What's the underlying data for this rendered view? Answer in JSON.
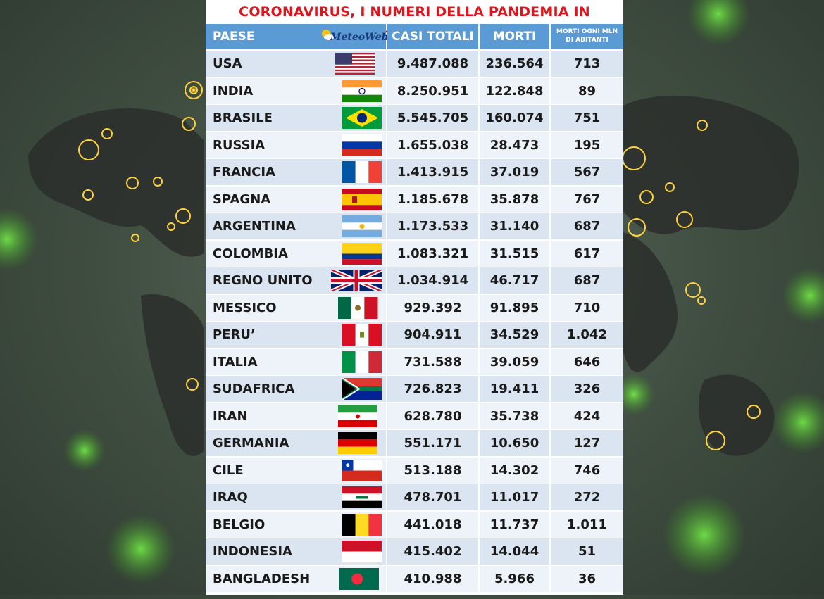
{
  "title": "CORONAVIRUS, I NUMERI DELLA PANDEMIA IN DIRETTA",
  "logo_text": "MeteoWeb",
  "headers": {
    "paese": "PAESE",
    "casi": "CASI TOTALI",
    "morti": "MORTI",
    "mln_line1": "MORTI OGNI MLN",
    "mln_line2": "DI ABITANTI"
  },
  "rows": [
    {
      "name": "USA",
      "casi": "9.487.088",
      "morti": "236.564",
      "mln": "713",
      "flag": "usa"
    },
    {
      "name": "INDIA",
      "casi": "8.250.951",
      "morti": "122.848",
      "mln": "89",
      "flag": "india"
    },
    {
      "name": "BRASILE",
      "casi": "5.545.705",
      "morti": "160.074",
      "mln": "751",
      "flag": "brazil"
    },
    {
      "name": "RUSSIA",
      "casi": "1.655.038",
      "morti": "28.473",
      "mln": "195",
      "flag": "russia"
    },
    {
      "name": "FRANCIA",
      "casi": "1.413.915",
      "morti": "37.019",
      "mln": "567",
      "flag": "france"
    },
    {
      "name": "SPAGNA",
      "casi": "1.185.678",
      "morti": "35.878",
      "mln": "767",
      "flag": "spain"
    },
    {
      "name": "ARGENTINA",
      "casi": "1.173.533",
      "morti": "31.140",
      "mln": "687",
      "flag": "argentina"
    },
    {
      "name": "COLOMBIA",
      "casi": "1.083.321",
      "morti": "31.515",
      "mln": "617",
      "flag": "colombia"
    },
    {
      "name": "REGNO UNITO",
      "casi": "1.034.914",
      "morti": "46.717",
      "mln": "687",
      "flag": "uk"
    },
    {
      "name": "MESSICO",
      "casi": "929.392",
      "morti": "91.895",
      "mln": "710",
      "flag": "mexico"
    },
    {
      "name": "PERU’",
      "casi": "904.911",
      "morti": "34.529",
      "mln": "1.042",
      "flag": "peru"
    },
    {
      "name": "ITALIA",
      "casi": "731.588",
      "morti": "39.059",
      "mln": "646",
      "flag": "italy"
    },
    {
      "name": "SUDAFRICA",
      "casi": "726.823",
      "morti": "19.411",
      "mln": "326",
      "flag": "southafrica"
    },
    {
      "name": "IRAN",
      "casi": "628.780",
      "morti": "35.738",
      "mln": "424",
      "flag": "iran"
    },
    {
      "name": "GERMANIA",
      "casi": "551.171",
      "morti": "10.650",
      "mln": "127",
      "flag": "germany"
    },
    {
      "name": "CILE",
      "casi": "513.188",
      "morti": "14.302",
      "mln": "746",
      "flag": "chile"
    },
    {
      "name": "IRAQ",
      "casi": "478.701",
      "morti": "11.017",
      "mln": "272",
      "flag": "iraq"
    },
    {
      "name": "BELGIO",
      "casi": "441.018",
      "morti": "11.737",
      "mln": "1.011",
      "flag": "belgium"
    },
    {
      "name": "INDONESIA",
      "casi": "415.402",
      "morti": "14.044",
      "mln": "51",
      "flag": "indonesia"
    },
    {
      "name": "BANGLADESH",
      "casi": "410.988",
      "morti": "5.966",
      "mln": "36",
      "flag": "bangladesh"
    }
  ],
  "colors": {
    "title": "#e0141c",
    "header_bg": "#5b9bd5",
    "row_bg": "#dbe5f1"
  }
}
